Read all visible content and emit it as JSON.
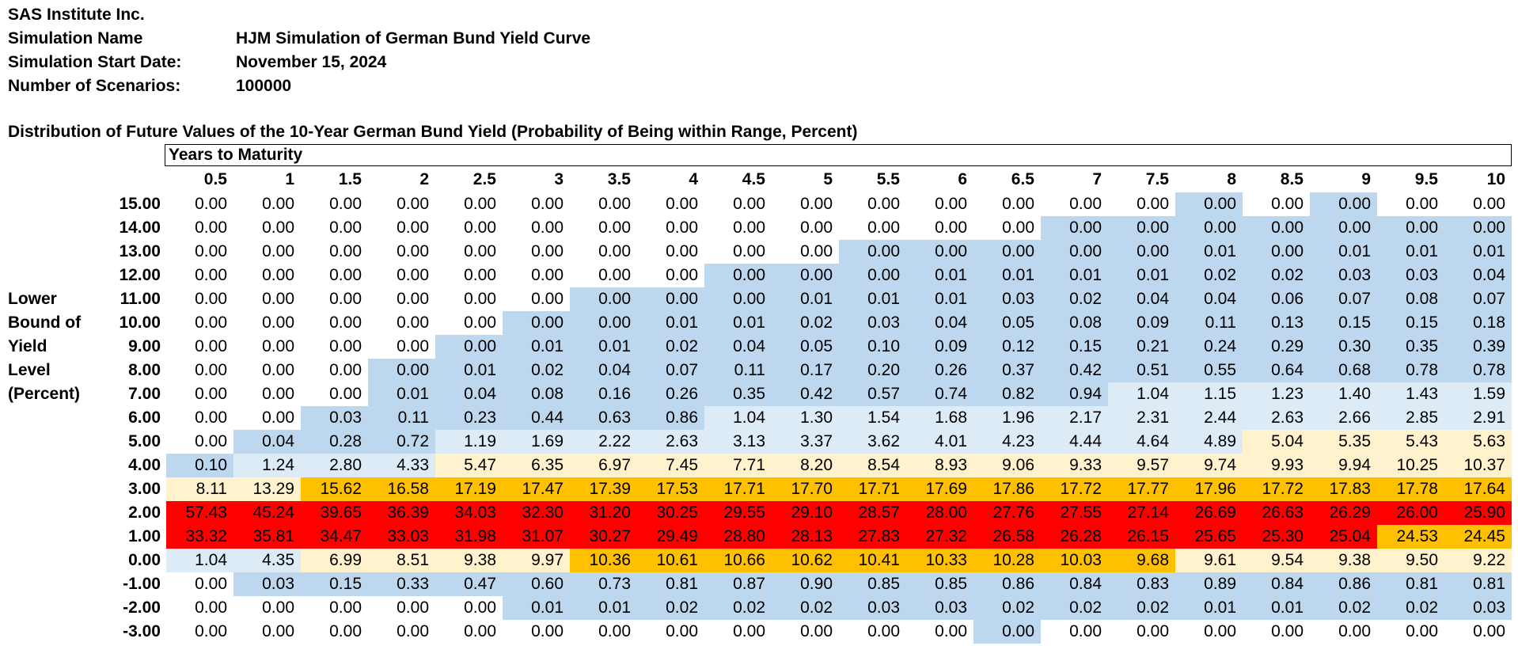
{
  "header": {
    "company": "SAS Institute Inc.",
    "sim_name_label": "Simulation Name",
    "sim_name": "HJM Simulation of German Bund Yield Curve",
    "start_date_label": "Simulation Start Date:",
    "start_date": "November 15, 2024",
    "scenarios_label": "Number of Scenarios:",
    "scenarios": "100000"
  },
  "table_title": "Distribution of Future Values of the 10-Year German Bund Yield (Probability of Being within Range, Percent)",
  "years_label": "Years to Maturity",
  "side_label": [
    "Lower",
    "Bound of",
    "Yield",
    "Level",
    "(Percent)"
  ],
  "columns": [
    "0.5",
    "1",
    "1.5",
    "2",
    "2.5",
    "3",
    "3.5",
    "4",
    "4.5",
    "5",
    "5.5",
    "6",
    "6.5",
    "7",
    "7.5",
    "8",
    "8.5",
    "9",
    "9.5",
    "10"
  ],
  "colors": {
    "w": "#ffffff",
    "b": "#bdd7ee",
    "l": "#ddebf7",
    "y": "#fff2cc",
    "o": "#ffc000",
    "r": "#ff0000"
  },
  "rows": [
    {
      "label": "15.00",
      "values": [
        "0.00",
        "0.00",
        "0.00",
        "0.00",
        "0.00",
        "0.00",
        "0.00",
        "0.00",
        "0.00",
        "0.00",
        "0.00",
        "0.00",
        "0.00",
        "0.00",
        "0.00",
        "0.00",
        "0.00",
        "0.00",
        "0.00",
        "0.00"
      ],
      "shade": "wwwwwwwwwwwwwwwbwbww"
    },
    {
      "label": "14.00",
      "values": [
        "0.00",
        "0.00",
        "0.00",
        "0.00",
        "0.00",
        "0.00",
        "0.00",
        "0.00",
        "0.00",
        "0.00",
        "0.00",
        "0.00",
        "0.00",
        "0.00",
        "0.00",
        "0.00",
        "0.00",
        "0.00",
        "0.00",
        "0.00"
      ],
      "shade": "wwwwwwwwwwwwwbbbbbbb"
    },
    {
      "label": "13.00",
      "values": [
        "0.00",
        "0.00",
        "0.00",
        "0.00",
        "0.00",
        "0.00",
        "0.00",
        "0.00",
        "0.00",
        "0.00",
        "0.00",
        "0.00",
        "0.00",
        "0.00",
        "0.00",
        "0.01",
        "0.00",
        "0.01",
        "0.01",
        "0.01"
      ],
      "shade": "wwwwwwwwwwbbbbbbbbbb"
    },
    {
      "label": "12.00",
      "values": [
        "0.00",
        "0.00",
        "0.00",
        "0.00",
        "0.00",
        "0.00",
        "0.00",
        "0.00",
        "0.00",
        "0.00",
        "0.00",
        "0.01",
        "0.01",
        "0.01",
        "0.01",
        "0.02",
        "0.02",
        "0.03",
        "0.03",
        "0.04"
      ],
      "shade": "wwwwwwwwbbbbbbbbbbbb"
    },
    {
      "label": "11.00",
      "values": [
        "0.00",
        "0.00",
        "0.00",
        "0.00",
        "0.00",
        "0.00",
        "0.00",
        "0.00",
        "0.00",
        "0.01",
        "0.01",
        "0.01",
        "0.03",
        "0.02",
        "0.04",
        "0.04",
        "0.06",
        "0.07",
        "0.08",
        "0.07"
      ],
      "shade": "wwwwwwbbbbbbbbbbbbbb"
    },
    {
      "label": "10.00",
      "values": [
        "0.00",
        "0.00",
        "0.00",
        "0.00",
        "0.00",
        "0.00",
        "0.00",
        "0.01",
        "0.01",
        "0.02",
        "0.03",
        "0.04",
        "0.05",
        "0.08",
        "0.09",
        "0.11",
        "0.13",
        "0.15",
        "0.15",
        "0.18"
      ],
      "shade": "wwwwwbbbbbbbbbbbbbbb"
    },
    {
      "label": "9.00",
      "values": [
        "0.00",
        "0.00",
        "0.00",
        "0.00",
        "0.00",
        "0.01",
        "0.01",
        "0.02",
        "0.04",
        "0.05",
        "0.10",
        "0.09",
        "0.12",
        "0.15",
        "0.21",
        "0.24",
        "0.29",
        "0.30",
        "0.35",
        "0.39"
      ],
      "shade": "wwwwbbbbbbbbbbbbbbbb"
    },
    {
      "label": "8.00",
      "values": [
        "0.00",
        "0.00",
        "0.00",
        "0.00",
        "0.01",
        "0.02",
        "0.04",
        "0.07",
        "0.11",
        "0.17",
        "0.20",
        "0.26",
        "0.37",
        "0.42",
        "0.51",
        "0.55",
        "0.64",
        "0.68",
        "0.78",
        "0.78"
      ],
      "shade": "wwwbbbbbbbbbbbbbbbbb"
    },
    {
      "label": "7.00",
      "values": [
        "0.00",
        "0.00",
        "0.00",
        "0.01",
        "0.04",
        "0.08",
        "0.16",
        "0.26",
        "0.35",
        "0.42",
        "0.57",
        "0.74",
        "0.82",
        "0.94",
        "1.04",
        "1.15",
        "1.23",
        "1.40",
        "1.43",
        "1.59"
      ],
      "shade": "wwwbbbbbbbbbbbllllll"
    },
    {
      "label": "6.00",
      "values": [
        "0.00",
        "0.00",
        "0.03",
        "0.11",
        "0.23",
        "0.44",
        "0.63",
        "0.86",
        "1.04",
        "1.30",
        "1.54",
        "1.68",
        "1.96",
        "2.17",
        "2.31",
        "2.44",
        "2.63",
        "2.66",
        "2.85",
        "2.91"
      ],
      "shade": "wwbbbbbbllllllllllll"
    },
    {
      "label": "5.00",
      "values": [
        "0.00",
        "0.04",
        "0.28",
        "0.72",
        "1.19",
        "1.69",
        "2.22",
        "2.63",
        "3.13",
        "3.37",
        "3.62",
        "4.01",
        "4.23",
        "4.44",
        "4.64",
        "4.89",
        "5.04",
        "5.35",
        "5.43",
        "5.63"
      ],
      "shade": "wbbbllllllllllllyyyy"
    },
    {
      "label": "4.00",
      "values": [
        "0.10",
        "1.24",
        "2.80",
        "4.33",
        "5.47",
        "6.35",
        "6.97",
        "7.45",
        "7.71",
        "8.20",
        "8.54",
        "8.93",
        "9.06",
        "9.33",
        "9.57",
        "9.74",
        "9.93",
        "9.94",
        "10.25",
        "10.37"
      ],
      "shade": "blllyyyyyyyyyyyyyyyy"
    },
    {
      "label": "3.00",
      "values": [
        "8.11",
        "13.29",
        "15.62",
        "16.58",
        "17.19",
        "17.47",
        "17.39",
        "17.53",
        "17.71",
        "17.70",
        "17.71",
        "17.69",
        "17.86",
        "17.72",
        "17.77",
        "17.96",
        "17.72",
        "17.83",
        "17.78",
        "17.64"
      ],
      "shade": "yyoooooooooooooooooo"
    },
    {
      "label": "2.00",
      "values": [
        "57.43",
        "45.24",
        "39.65",
        "36.39",
        "34.03",
        "32.30",
        "31.20",
        "30.25",
        "29.55",
        "29.10",
        "28.57",
        "28.00",
        "27.76",
        "27.55",
        "27.14",
        "26.69",
        "26.63",
        "26.29",
        "26.00",
        "25.90"
      ],
      "shade": "rrrrrrrrrrrrrrrrrrrr"
    },
    {
      "label": "1.00",
      "values": [
        "33.32",
        "35.81",
        "34.47",
        "33.03",
        "31.98",
        "31.07",
        "30.27",
        "29.49",
        "28.80",
        "28.13",
        "27.83",
        "27.32",
        "26.58",
        "26.28",
        "26.15",
        "25.65",
        "25.30",
        "25.04",
        "24.53",
        "24.45"
      ],
      "shade": "rrrrrrrrrrrrrrrrrroo"
    },
    {
      "label": "0.00",
      "values": [
        "1.04",
        "4.35",
        "6.99",
        "8.51",
        "9.38",
        "9.97",
        "10.36",
        "10.61",
        "10.66",
        "10.62",
        "10.41",
        "10.33",
        "10.28",
        "10.03",
        "9.68",
        "9.61",
        "9.54",
        "9.38",
        "9.50",
        "9.22"
      ],
      "shade": "llyyyyoooooooooyyyyy"
    },
    {
      "label": "-1.00",
      "values": [
        "0.00",
        "0.03",
        "0.15",
        "0.33",
        "0.47",
        "0.60",
        "0.73",
        "0.81",
        "0.87",
        "0.90",
        "0.85",
        "0.85",
        "0.86",
        "0.84",
        "0.83",
        "0.89",
        "0.84",
        "0.86",
        "0.81",
        "0.81"
      ],
      "shade": "wbbbbbbbbbbbbbbbbbbb"
    },
    {
      "label": "-2.00",
      "values": [
        "0.00",
        "0.00",
        "0.00",
        "0.00",
        "0.00",
        "0.01",
        "0.01",
        "0.02",
        "0.02",
        "0.02",
        "0.03",
        "0.03",
        "0.02",
        "0.02",
        "0.02",
        "0.01",
        "0.01",
        "0.02",
        "0.02",
        "0.03"
      ],
      "shade": "wwwwwbbbbbbbbbbbbbbb"
    },
    {
      "label": "-3.00",
      "values": [
        "0.00",
        "0.00",
        "0.00",
        "0.00",
        "0.00",
        "0.00",
        "0.00",
        "0.00",
        "0.00",
        "0.00",
        "0.00",
        "0.00",
        "0.00",
        "0.00",
        "0.00",
        "0.00",
        "0.00",
        "0.00",
        "0.00",
        "0.00"
      ],
      "shade": "wwwwwwwwwwwwbwwwwwww"
    }
  ]
}
